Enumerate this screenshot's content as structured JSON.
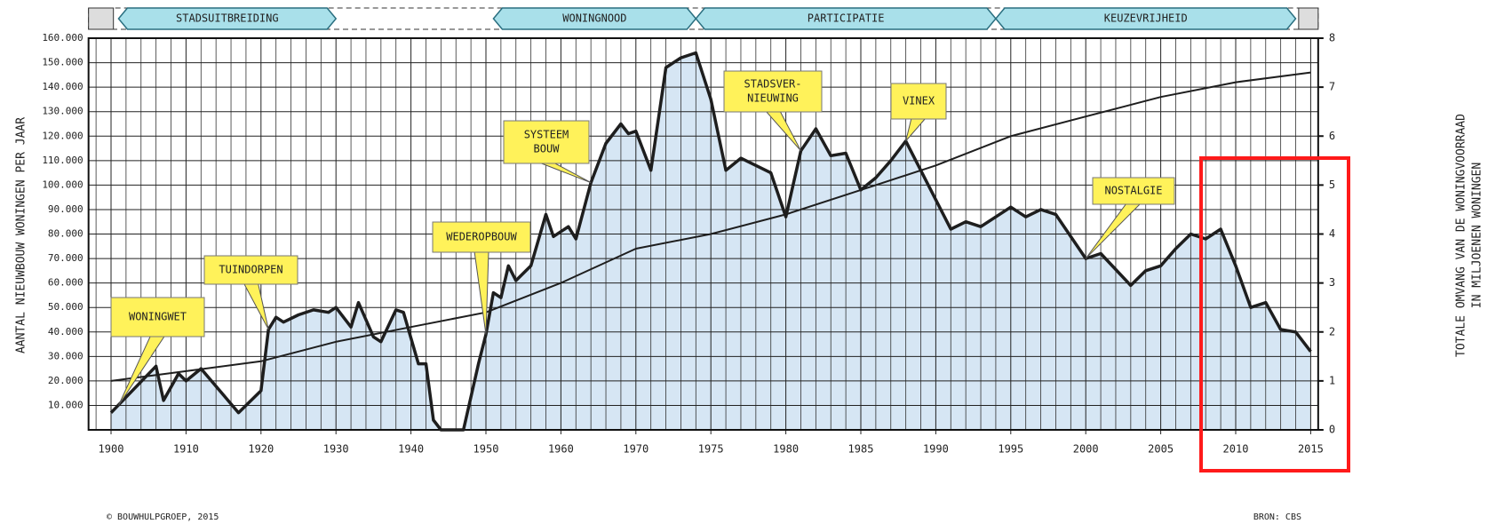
{
  "chart_data": {
    "type": "line",
    "y_label": "AANTAL NIEUWBOUW WONINGEN PER JAAR",
    "y2_label": [
      "TOTALE OMVANG VAN DE WONINGVOORRAAD",
      "IN MILJOENEN WONINGEN"
    ],
    "periods": [
      {
        "label": "STADSUITBREIDING",
        "from": 1901,
        "to": 1930
      },
      {
        "label": "WONINGNOOD",
        "from": 1951,
        "to": 1974
      },
      {
        "label": "PARTICIPATIE",
        "from": 1974,
        "to": 1994
      },
      {
        "label": "KEUZEVRIJHEID",
        "from": 1994,
        "to": 2014
      }
    ],
    "annotations": [
      {
        "lines": [
          "WONINGWET"
        ],
        "x": 1901,
        "y": 10000
      },
      {
        "lines": [
          "TUINDORPEN"
        ],
        "x": 1921,
        "y": 41000
      },
      {
        "lines": [
          "WEDEROPBOUW"
        ],
        "x": 1950,
        "y": 39000
      },
      {
        "lines": [
          "SYSTEEM",
          "BOUW"
        ],
        "x": 1964,
        "y": 101000
      },
      {
        "lines": [
          "STADSVER-",
          "NIEUWING"
        ],
        "x": 1981,
        "y": 114000
      },
      {
        "lines": [
          "VINEX"
        ],
        "x": 1988,
        "y": 118000
      },
      {
        "lines": [
          "NOSTALGIE"
        ],
        "x": 2000,
        "y": 70000
      }
    ],
    "series": [
      {
        "color": "#1e1e1e",
        "fill": "#cfe2f2",
        "x": [
          1900,
          1906,
          1907,
          1909,
          1910,
          1912,
          1917,
          1920,
          1921,
          1922,
          1923,
          1925,
          1927,
          1929,
          1930,
          1932,
          1933,
          1935,
          1936,
          1938,
          1939,
          1941,
          1942,
          1943,
          1944,
          1947,
          1949,
          1950,
          1951,
          1952,
          1953,
          1954,
          1956,
          1958,
          1959,
          1961,
          1962,
          1964,
          1966,
          1968,
          1969,
          1970,
          1971,
          1972,
          1973,
          1974,
          1975,
          1976,
          1977,
          1979,
          1980,
          1981,
          1982,
          1983,
          1984,
          1985,
          1986,
          1987,
          1988,
          1989,
          1990,
          1991,
          1992,
          1993,
          1994,
          1995,
          1996,
          1997,
          1998,
          2000,
          2001,
          2003,
          2004,
          2005,
          2006,
          2007,
          2008,
          2009,
          2010,
          2011,
          2012,
          2013,
          2014,
          2015
        ],
        "values": [
          7000,
          26000,
          12000,
          23000,
          20000,
          25000,
          7000,
          16000,
          41000,
          46000,
          44000,
          47000,
          49000,
          48000,
          50000,
          42000,
          52000,
          38000,
          36000,
          49000,
          48000,
          27000,
          27000,
          4000,
          0,
          0,
          27000,
          39000,
          56000,
          54000,
          67000,
          61000,
          67000,
          88000,
          79000,
          83000,
          78000,
          101000,
          117000,
          125000,
          121000,
          122000,
          106000,
          148000,
          152000,
          154000,
          135000,
          106000,
          111000,
          105000,
          87000,
          114000,
          123000,
          112000,
          113000,
          98000,
          103000,
          110000,
          118000,
          106000,
          94000,
          82000,
          85000,
          83000,
          87000,
          91000,
          87000,
          90000,
          88000,
          70000,
          72000,
          59000,
          65000,
          67000,
          74000,
          80000,
          78000,
          82000,
          67000,
          50000,
          52000,
          41000,
          40000,
          32000
        ]
      },
      {
        "color": "#1e1e1e",
        "axis": "y2",
        "x": [
          1900,
          1910,
          1920,
          1930,
          1940,
          1950,
          1960,
          1970,
          1975,
          1980,
          1985,
          1990,
          1995,
          2000,
          2005,
          2010,
          2015
        ],
        "values": [
          1.0,
          1.2,
          1.4,
          1.8,
          2.1,
          2.4,
          3.0,
          3.7,
          4.0,
          4.4,
          4.9,
          5.4,
          6.0,
          6.4,
          6.8,
          7.1,
          7.3
        ]
      }
    ],
    "xlim": [
      1897,
      2015.5
    ],
    "xticks": [
      1900,
      1910,
      1920,
      1930,
      1940,
      1950,
      1960,
      1970,
      1975,
      1980,
      1985,
      1990,
      1995,
      2000,
      2005,
      2010,
      2015
    ],
    "ylim": [
      0,
      160000
    ],
    "yticks": [
      {
        "value": 10000,
        "label": "10.000"
      },
      {
        "value": 20000,
        "label": "20.000"
      },
      {
        "value": 30000,
        "label": "30.000"
      },
      {
        "value": 40000,
        "label": "40.000"
      },
      {
        "value": 50000,
        "label": "50.000"
      },
      {
        "value": 60000,
        "label": "60.000"
      },
      {
        "value": 70000,
        "label": "70.000"
      },
      {
        "value": 80000,
        "label": "80.000"
      },
      {
        "value": 90000,
        "label": "90.000"
      },
      {
        "value": 100000,
        "label": "100.000"
      },
      {
        "value": 110000,
        "label": "110.000"
      },
      {
        "value": 120000,
        "label": "120.000"
      },
      {
        "value": 130000,
        "label": "130.000"
      },
      {
        "value": 140000,
        "label": "140.000"
      },
      {
        "value": 150000,
        "label": "150.000"
      },
      {
        "value": 160000,
        "label": "160.000"
      }
    ],
    "y2lim": [
      0,
      8
    ],
    "y2ticks": [
      0,
      1,
      2,
      3,
      4,
      5,
      6,
      7,
      8
    ],
    "grid": true,
    "credit": "© BOUWHULPGROEP, 2015",
    "source": "BRON: CBS"
  }
}
